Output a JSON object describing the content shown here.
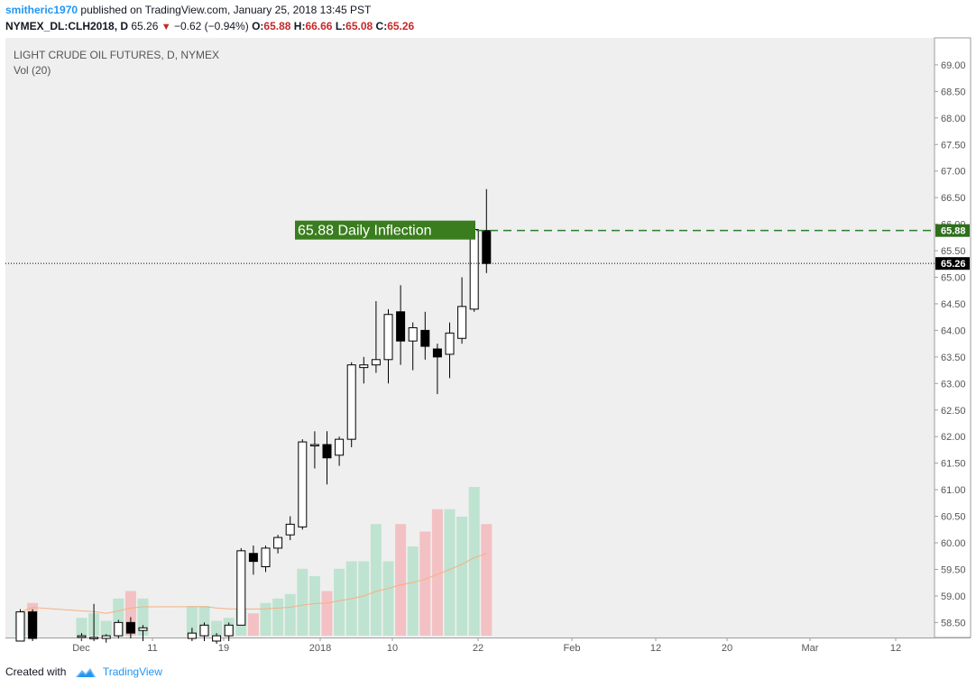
{
  "header": {
    "user": "smitheric1970",
    "published_text": " published on TradingView.com, January 25, 2018 13:45 PST",
    "symbol": "NYMEX_DL:CLH2018, D",
    "last": "65.26",
    "change": "−0.62 (−0.94%)",
    "open_label": "O:",
    "open": "65.88",
    "high_label": "H:",
    "high": "66.66",
    "low_label": "L:",
    "low": "65.08",
    "close_label": "C:",
    "close": "65.26"
  },
  "footer": {
    "created_with": "Created with",
    "brand": "TradingView"
  },
  "colors": {
    "up_volume": "#bfe3d1",
    "down_volume": "#f3c1c3",
    "annotation_bg": "#3a7d1e",
    "dashed_line": "#2e7d32",
    "ma_line": "#f5b080"
  },
  "chart_data": {
    "type": "candlestick",
    "title": "LIGHT CRUDE OIL FUTURES, D, NYMEX",
    "volume_label": "Vol (20)",
    "y_ticks": [
      "58.50",
      "59.00",
      "59.50",
      "60.00",
      "60.50",
      "61.00",
      "61.50",
      "62.00",
      "62.50",
      "63.00",
      "63.50",
      "64.00",
      "64.50",
      "65.00",
      "65.50",
      "66.00",
      "66.50",
      "67.00",
      "67.50",
      "68.00",
      "68.50",
      "69.00"
    ],
    "ylim": [
      58.1,
      69.5
    ],
    "x_ticks": [
      "Dec",
      "11",
      "19",
      "2018",
      "10",
      "22",
      "Feb",
      "12",
      "20",
      "Mar",
      "12"
    ],
    "annotation": {
      "text": "65.88 Daily Inflection",
      "price": 65.88
    },
    "price_labels": [
      {
        "text": "65.88",
        "price": 65.88,
        "style": "inflection"
      },
      {
        "text": "65.26",
        "price": 65.26,
        "style": "last"
      }
    ],
    "candles": [
      {
        "o": 58.15,
        "h": 58.75,
        "l": 58.15,
        "c": 58.7,
        "v": 0.16
      },
      {
        "o": 58.7,
        "h": 58.75,
        "l": 58.15,
        "c": 58.2,
        "v": 0.22
      },
      {
        "o": 58.22,
        "h": 58.3,
        "l": 58.15,
        "c": 58.25,
        "v": 0.12
      },
      {
        "o": 58.2,
        "h": 58.85,
        "l": 58.15,
        "c": 58.22,
        "v": 0.15
      },
      {
        "o": 58.2,
        "h": 58.28,
        "l": 58.12,
        "c": 58.25,
        "v": 0.1
      },
      {
        "o": 58.25,
        "h": 58.55,
        "l": 58.2,
        "c": 58.5,
        "v": 0.25
      },
      {
        "o": 58.5,
        "h": 58.6,
        "l": 58.2,
        "c": 58.3,
        "v": 0.3
      },
      {
        "o": 58.35,
        "h": 58.45,
        "l": 58.15,
        "c": 58.4,
        "v": 0.25
      },
      {
        "o": 58.2,
        "h": 58.4,
        "l": 58.15,
        "c": 58.3,
        "v": 0.2
      },
      {
        "o": 58.25,
        "h": 58.5,
        "l": 58.15,
        "c": 58.45,
        "v": 0.2
      },
      {
        "o": 58.15,
        "h": 58.3,
        "l": 58.1,
        "c": 58.25,
        "v": 0.1
      },
      {
        "o": 58.25,
        "h": 58.5,
        "l": 58.15,
        "c": 58.45,
        "v": 0.12
      },
      {
        "o": 58.45,
        "h": 59.9,
        "l": 58.45,
        "c": 59.85,
        "v": 0.18
      },
      {
        "o": 59.8,
        "h": 59.95,
        "l": 59.4,
        "c": 59.65,
        "v": 0.15
      },
      {
        "o": 59.55,
        "h": 59.95,
        "l": 59.45,
        "c": 59.9,
        "v": 0.22
      },
      {
        "o": 59.9,
        "h": 60.15,
        "l": 59.8,
        "c": 60.1,
        "v": 0.25
      },
      {
        "o": 60.15,
        "h": 60.5,
        "l": 60.05,
        "c": 60.35,
        "v": 0.28
      },
      {
        "o": 60.3,
        "h": 61.95,
        "l": 60.25,
        "c": 61.9,
        "v": 0.45
      },
      {
        "o": 61.85,
        "h": 62.1,
        "l": 61.4,
        "c": 61.85,
        "v": 0.4
      },
      {
        "o": 61.85,
        "h": 62.1,
        "l": 61.1,
        "c": 61.6,
        "v": 0.3
      },
      {
        "o": 61.65,
        "h": 62.0,
        "l": 61.45,
        "c": 61.95,
        "v": 0.45
      },
      {
        "o": 61.95,
        "h": 63.4,
        "l": 61.8,
        "c": 63.35,
        "v": 0.5
      },
      {
        "o": 63.3,
        "h": 63.5,
        "l": 63.0,
        "c": 63.35,
        "v": 0.5
      },
      {
        "o": 63.35,
        "h": 64.55,
        "l": 63.2,
        "c": 63.45,
        "v": 0.75
      },
      {
        "o": 63.45,
        "h": 64.4,
        "l": 63.0,
        "c": 64.3,
        "v": 0.5
      },
      {
        "o": 64.35,
        "h": 64.85,
        "l": 63.35,
        "c": 63.8,
        "v": 0.75
      },
      {
        "o": 63.8,
        "h": 64.15,
        "l": 63.25,
        "c": 64.05,
        "v": 0.6
      },
      {
        "o": 64.0,
        "h": 64.35,
        "l": 63.45,
        "c": 63.7,
        "v": 0.7
      },
      {
        "o": 63.65,
        "h": 63.75,
        "l": 62.8,
        "c": 63.5,
        "v": 0.85
      },
      {
        "o": 63.55,
        "h": 64.15,
        "l": 63.1,
        "c": 63.95,
        "v": 0.85
      },
      {
        "o": 63.85,
        "h": 65.0,
        "l": 63.75,
        "c": 64.45,
        "v": 0.8
      },
      {
        "o": 64.4,
        "h": 66.05,
        "l": 64.35,
        "c": 65.9,
        "v": 1.0
      },
      {
        "o": 65.88,
        "h": 66.66,
        "l": 65.08,
        "c": 65.26,
        "v": 0.75
      }
    ]
  }
}
